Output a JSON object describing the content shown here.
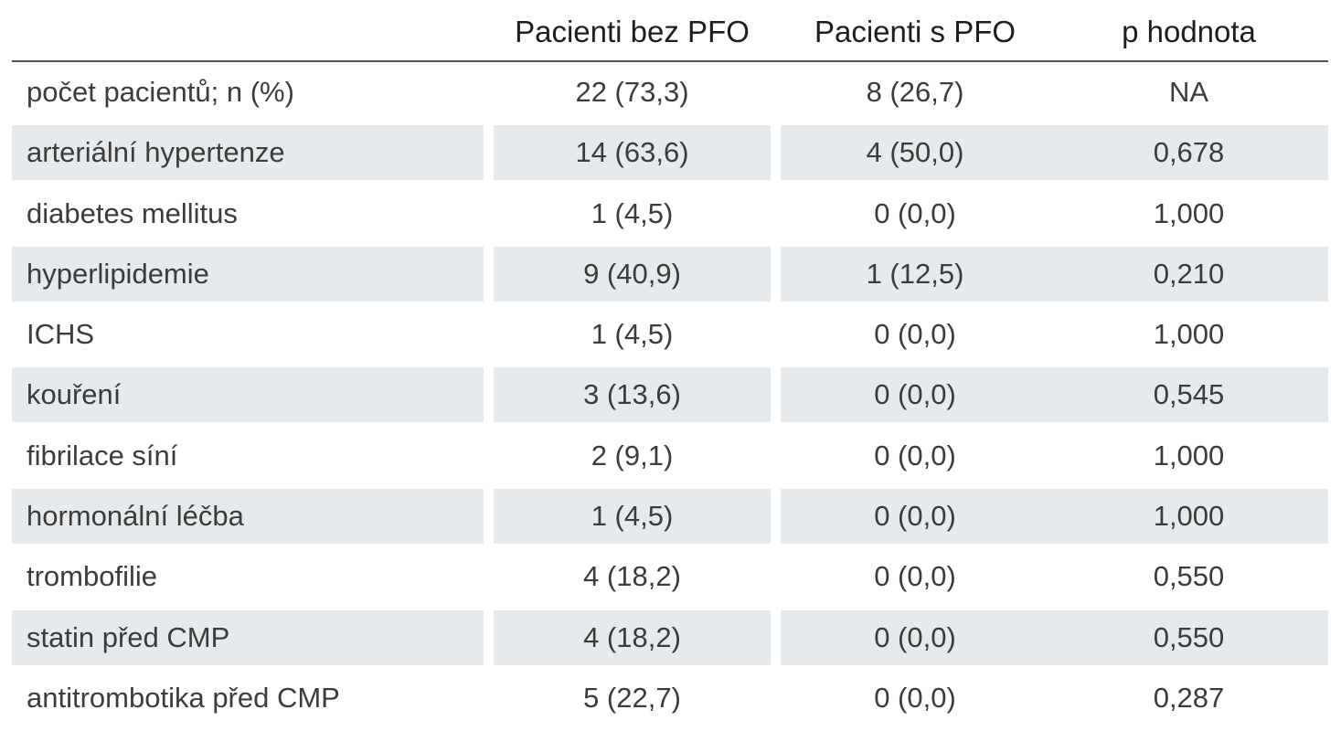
{
  "table": {
    "headers": {
      "label": "",
      "no_pfo": "Pacienti bez PFO",
      "pfo": "Pacienti s PFO",
      "p_value": "p hodnota"
    },
    "rows": [
      {
        "label": "počet pacientů; n (%)",
        "no_pfo": "22 (73,3)",
        "pfo": "8 (26,7)",
        "p_value": "NA"
      },
      {
        "label": "arteriální hypertenze",
        "no_pfo": "14 (63,6)",
        "pfo": "4 (50,0)",
        "p_value": "0,678"
      },
      {
        "label": "diabetes mellitus",
        "no_pfo": "1 (4,5)",
        "pfo": "0 (0,0)",
        "p_value": "1,000"
      },
      {
        "label": "hyperlipidemie",
        "no_pfo": "9 (40,9)",
        "pfo": "1 (12,5)",
        "p_value": "0,210"
      },
      {
        "label": "ICHS",
        "no_pfo": "1 (4,5)",
        "pfo": "0 (0,0)",
        "p_value": "1,000"
      },
      {
        "label": "kouření",
        "no_pfo": "3 (13,6)",
        "pfo": "0 (0,0)",
        "p_value": "0,545"
      },
      {
        "label": "fibrilace síní",
        "no_pfo": "2 (9,1)",
        "pfo": "0 (0,0)",
        "p_value": "1,000"
      },
      {
        "label": "hormonální léčba",
        "no_pfo": "1 (4,5)",
        "pfo": "0 (0,0)",
        "p_value": "1,000"
      },
      {
        "label": "trombofilie",
        "no_pfo": "4 (18,2)",
        "pfo": "0 (0,0)",
        "p_value": "0,550"
      },
      {
        "label": "statin před CMP",
        "no_pfo": "4 (18,2)",
        "pfo": "0 (0,0)",
        "p_value": "0,550"
      },
      {
        "label": "antitrombotika před CMP",
        "no_pfo": "5 (22,7)",
        "pfo": "0 (0,0)",
        "p_value": "0,287"
      }
    ]
  }
}
